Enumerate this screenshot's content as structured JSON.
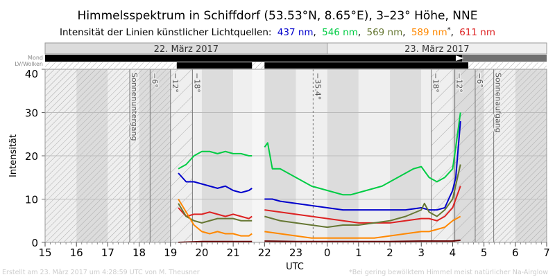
{
  "chart_data": {
    "type": "line",
    "title": "Himmelsspektrum in Schiffdorf (53.53°N, 8.65°E), 3–23° Höhe, NNE",
    "subtitle_prefix": "Intensität der Linien künstlicher Lichtquellen:",
    "legend": [
      {
        "label": "437 nm",
        "color": "#0000cc"
      },
      {
        "label": "546 nm",
        "color": "#00cc44"
      },
      {
        "label": "569 nm",
        "color": "#667733"
      },
      {
        "label": "589 nm",
        "color": "#ff8800",
        "mark": "*"
      },
      {
        "label": "611 nm",
        "color": "#dd2222"
      }
    ],
    "xlabel": "UTC",
    "ylabel": "Intensität",
    "xlim": [
      15,
      31
    ],
    "ylim": [
      0,
      40
    ],
    "xticks": [
      "15",
      "16",
      "17",
      "18",
      "19",
      "20",
      "21",
      "22",
      "23",
      "0",
      "1",
      "2",
      "3",
      "4",
      "5",
      "6",
      "7"
    ],
    "yticks": [
      0,
      10,
      20,
      30,
      40
    ],
    "dates": [
      "22. März 2017",
      "23. März 2017"
    ],
    "row_labels": [
      "Mond",
      "LV/Wolken"
    ],
    "events": [
      {
        "label": "Sonnenuntergang",
        "x": 17.7
      },
      {
        "label": "−6°",
        "x": 18.35
      },
      {
        "label": "−12°",
        "x": 19.0
      },
      {
        "label": "−18°",
        "x": 19.7
      },
      {
        "label": "−35.4°",
        "x": 23.55,
        "dashed": true
      },
      {
        "label": "−18°",
        "x": 27.32
      },
      {
        "label": "−12°",
        "x": 28.07
      },
      {
        "label": "−6°",
        "x": 28.72
      },
      {
        "label": "Sonnenaufgang",
        "x": 29.31
      }
    ],
    "series": [
      {
        "name": "546 nm",
        "color": "#00cc44",
        "segments": [
          [
            [
              19.25,
              17
            ],
            [
              19.5,
              18
            ],
            [
              19.75,
              20
            ],
            [
              20,
              21
            ],
            [
              20.25,
              21
            ],
            [
              20.5,
              20.5
            ],
            [
              20.75,
              21
            ],
            [
              21,
              20.5
            ],
            [
              21.25,
              20.5
            ],
            [
              21.5,
              20
            ],
            [
              21.6,
              20
            ]
          ],
          [
            [
              22,
              22
            ],
            [
              22.1,
              23
            ],
            [
              22.25,
              17
            ],
            [
              22.5,
              17
            ],
            [
              22.75,
              16
            ],
            [
              23,
              15
            ],
            [
              23.25,
              14
            ],
            [
              23.5,
              13
            ],
            [
              23.75,
              12.5
            ],
            [
              24,
              12
            ],
            [
              24.25,
              11.5
            ],
            [
              24.5,
              11
            ],
            [
              24.75,
              11
            ],
            [
              25,
              11.5
            ],
            [
              25.25,
              12
            ],
            [
              25.5,
              12.5
            ],
            [
              25.75,
              13
            ],
            [
              26,
              14
            ],
            [
              26.25,
              15
            ],
            [
              26.5,
              16
            ],
            [
              26.75,
              17
            ],
            [
              27,
              17.5
            ],
            [
              27.25,
              15
            ],
            [
              27.5,
              14
            ],
            [
              27.75,
              15
            ],
            [
              28,
              17
            ],
            [
              28.1,
              22
            ],
            [
              28.25,
              30
            ]
          ]
        ]
      },
      {
        "name": "437 nm",
        "color": "#0000cc",
        "segments": [
          [
            [
              19.25,
              16
            ],
            [
              19.5,
              14
            ],
            [
              19.75,
              14
            ],
            [
              20,
              13.5
            ],
            [
              20.25,
              13
            ],
            [
              20.5,
              12.5
            ],
            [
              20.75,
              13
            ],
            [
              21,
              12
            ],
            [
              21.25,
              11.5
            ],
            [
              21.5,
              12
            ],
            [
              21.6,
              12.5
            ]
          ],
          [
            [
              22,
              10
            ],
            [
              22.25,
              10
            ],
            [
              22.5,
              9.5
            ],
            [
              23,
              9
            ],
            [
              23.5,
              8.5
            ],
            [
              24,
              8
            ],
            [
              24.5,
              7.5
            ],
            [
              25,
              7.5
            ],
            [
              25.5,
              7.5
            ],
            [
              26,
              7.5
            ],
            [
              26.5,
              7.5
            ],
            [
              27,
              8
            ],
            [
              27.25,
              7.5
            ],
            [
              27.5,
              7.5
            ],
            [
              27.75,
              8
            ],
            [
              28,
              12
            ],
            [
              28.1,
              15
            ],
            [
              28.25,
              28
            ]
          ]
        ]
      },
      {
        "name": "611 nm",
        "color": "#dd2222",
        "segments": [
          [
            [
              19.25,
              8
            ],
            [
              19.5,
              6
            ],
            [
              19.75,
              6.5
            ],
            [
              20,
              6.5
            ],
            [
              20.25,
              7
            ],
            [
              20.5,
              6.5
            ],
            [
              20.75,
              6
            ],
            [
              21,
              6.5
            ],
            [
              21.25,
              6
            ],
            [
              21.5,
              5.5
            ],
            [
              21.6,
              6
            ]
          ],
          [
            [
              22,
              7.5
            ],
            [
              22.5,
              7
            ],
            [
              23,
              6.5
            ],
            [
              23.5,
              6
            ],
            [
              24,
              5.5
            ],
            [
              24.5,
              5
            ],
            [
              25,
              4.5
            ],
            [
              25.5,
              4.5
            ],
            [
              26,
              4.5
            ],
            [
              26.5,
              5
            ],
            [
              27,
              5.5
            ],
            [
              27.25,
              5.5
            ],
            [
              27.5,
              5
            ],
            [
              27.75,
              6
            ],
            [
              28,
              8
            ],
            [
              28.25,
              13
            ]
          ]
        ]
      },
      {
        "name": "569 nm",
        "color": "#667733",
        "segments": [
          [
            [
              19.25,
              9
            ],
            [
              19.5,
              6
            ],
            [
              19.75,
              5
            ],
            [
              20,
              4.5
            ],
            [
              20.25,
              5
            ],
            [
              20.5,
              5.5
            ],
            [
              20.75,
              5.5
            ],
            [
              21,
              5.5
            ],
            [
              21.25,
              5
            ],
            [
              21.5,
              5
            ],
            [
              21.6,
              5
            ]
          ],
          [
            [
              22,
              6
            ],
            [
              22.5,
              5
            ],
            [
              23,
              4.5
            ],
            [
              23.5,
              4
            ],
            [
              24,
              3.5
            ],
            [
              24.5,
              4
            ],
            [
              25,
              4
            ],
            [
              25.5,
              4.5
            ],
            [
              26,
              5
            ],
            [
              26.5,
              6
            ],
            [
              27,
              7.5
            ],
            [
              27.1,
              9
            ],
            [
              27.25,
              7
            ],
            [
              27.5,
              6
            ],
            [
              27.75,
              7.5
            ],
            [
              28,
              10
            ],
            [
              28.25,
              18
            ]
          ]
        ]
      },
      {
        "name": "589 nm",
        "color": "#ff8800",
        "segments": [
          [
            [
              19.25,
              10
            ],
            [
              19.5,
              7
            ],
            [
              19.75,
              4
            ],
            [
              20,
              2.5
            ],
            [
              20.25,
              2
            ],
            [
              20.5,
              2.5
            ],
            [
              20.75,
              2
            ],
            [
              21,
              2
            ],
            [
              21.25,
              1.5
            ],
            [
              21.5,
              1.5
            ],
            [
              21.6,
              2
            ]
          ],
          [
            [
              22,
              2.5
            ],
            [
              22.5,
              2
            ],
            [
              23,
              1.5
            ],
            [
              23.5,
              1
            ],
            [
              24,
              1
            ],
            [
              24.5,
              1
            ],
            [
              25,
              1
            ],
            [
              25.5,
              1
            ],
            [
              26,
              1.5
            ],
            [
              26.5,
              2
            ],
            [
              27,
              2.5
            ],
            [
              27.25,
              2.5
            ],
            [
              27.5,
              3
            ],
            [
              27.75,
              3.5
            ],
            [
              28,
              5
            ],
            [
              28.25,
              6
            ]
          ]
        ]
      },
      {
        "name": "",
        "color": "#660000",
        "segments": [
          [
            [
              19.25,
              0
            ],
            [
              20,
              0.2
            ],
            [
              21,
              0.2
            ],
            [
              21.6,
              0.2
            ]
          ],
          [
            [
              22,
              0.3
            ],
            [
              23,
              0.2
            ],
            [
              24,
              0.2
            ],
            [
              25,
              0.2
            ],
            [
              26,
              0.2
            ],
            [
              27,
              0.3
            ],
            [
              28,
              0.3
            ],
            [
              28.25,
              0.5
            ]
          ]
        ]
      }
    ],
    "footer_left": "Erstellt am 23. März 2017 um 4:28:59 UTC von M. Theusner",
    "footer_right": "*Bei gering bewölktem Himmel meist natürlicher Na-Airglow"
  }
}
